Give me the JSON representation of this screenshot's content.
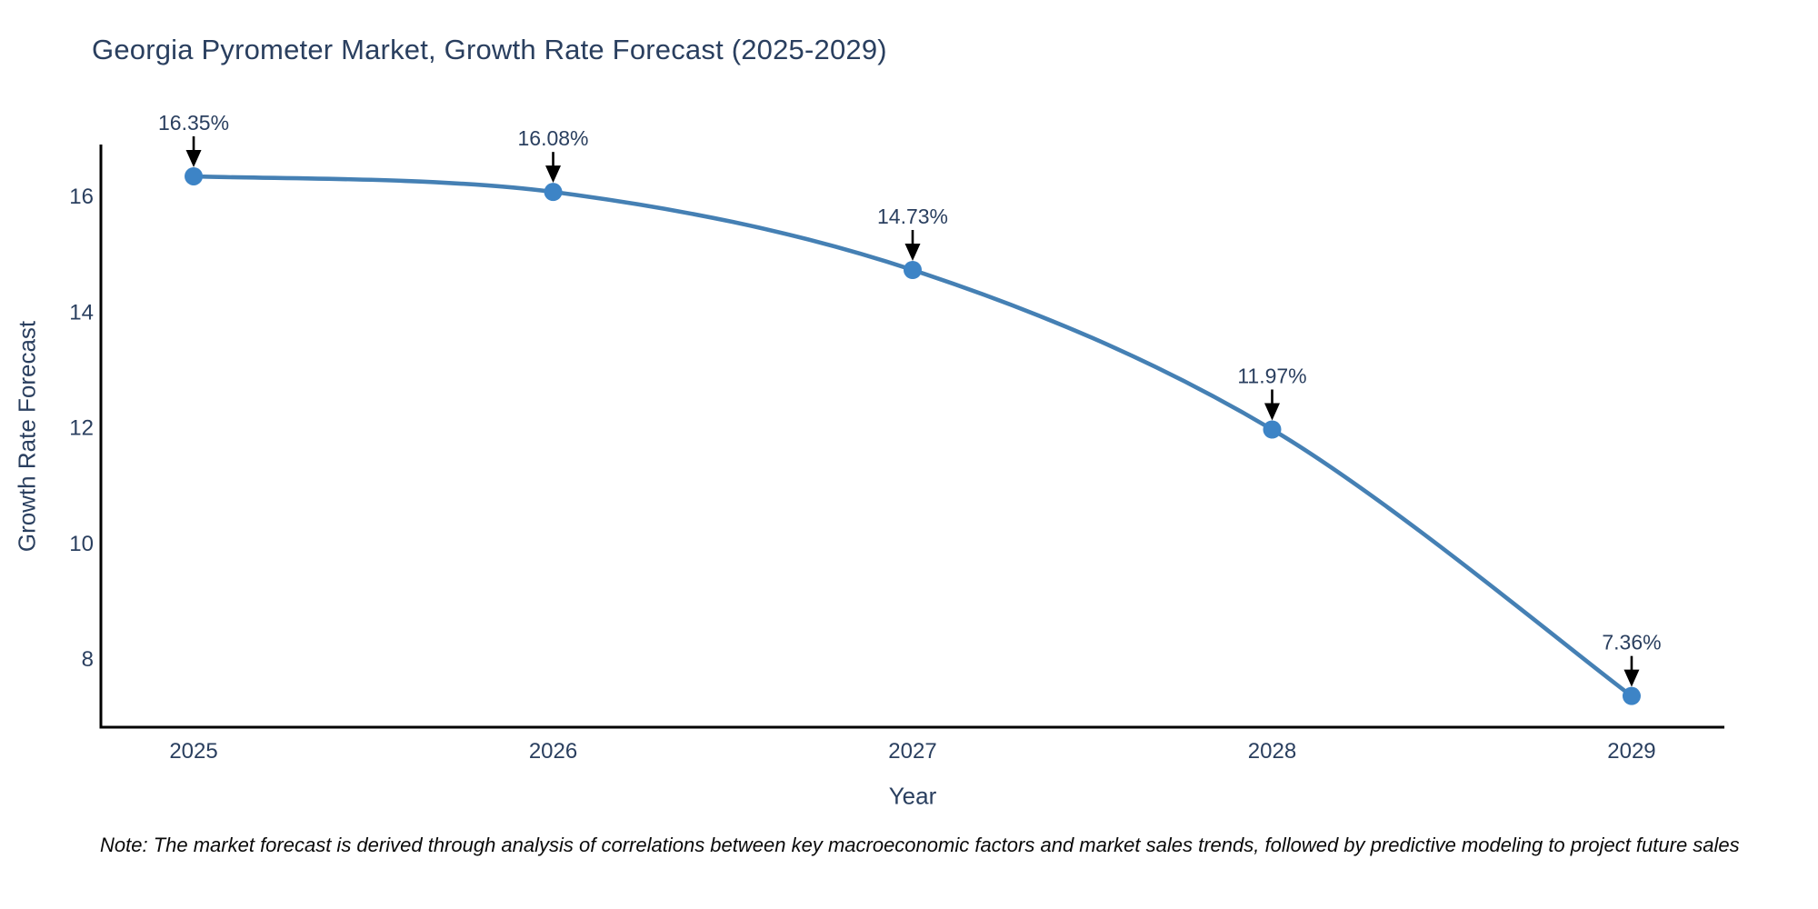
{
  "note": "Note: The market forecast is derived through analysis of correlations between key macroeconomic factors and market sales trends, followed by predictive modeling to project future sales",
  "chart_data": {
    "type": "line",
    "title": "Georgia Pyrometer Market, Growth Rate Forecast (2025-2029)",
    "xlabel": "Year",
    "ylabel": "Growth Rate Forecast",
    "x": [
      2025,
      2026,
      2027,
      2028,
      2029
    ],
    "series": [
      {
        "name": "Growth Rate Forecast",
        "values": [
          16.35,
          16.08,
          14.73,
          11.97,
          7.36
        ]
      }
    ],
    "point_labels": [
      "16.35%",
      "16.08%",
      "14.73%",
      "11.97%",
      "7.36%"
    ],
    "xticks": [
      "2025",
      "2026",
      "2027",
      "2028",
      "2029"
    ],
    "yticks": [
      8,
      10,
      12,
      14,
      16
    ],
    "xlim": [
      2024.742,
      2029.258
    ],
    "ylim": [
      6.82,
      16.9
    ],
    "grid": false,
    "legend": "none",
    "line_shape": "spline",
    "annotation_arrows": true,
    "colors": {
      "line": "#4580b4",
      "marker": "#3d84c6",
      "axis": "#000000",
      "tick_text": "#2a3f5f",
      "title_text": "#2a3f5f",
      "annotation_text": "#2a3f5f",
      "arrow": "#000000",
      "background": "#ffffff"
    }
  }
}
